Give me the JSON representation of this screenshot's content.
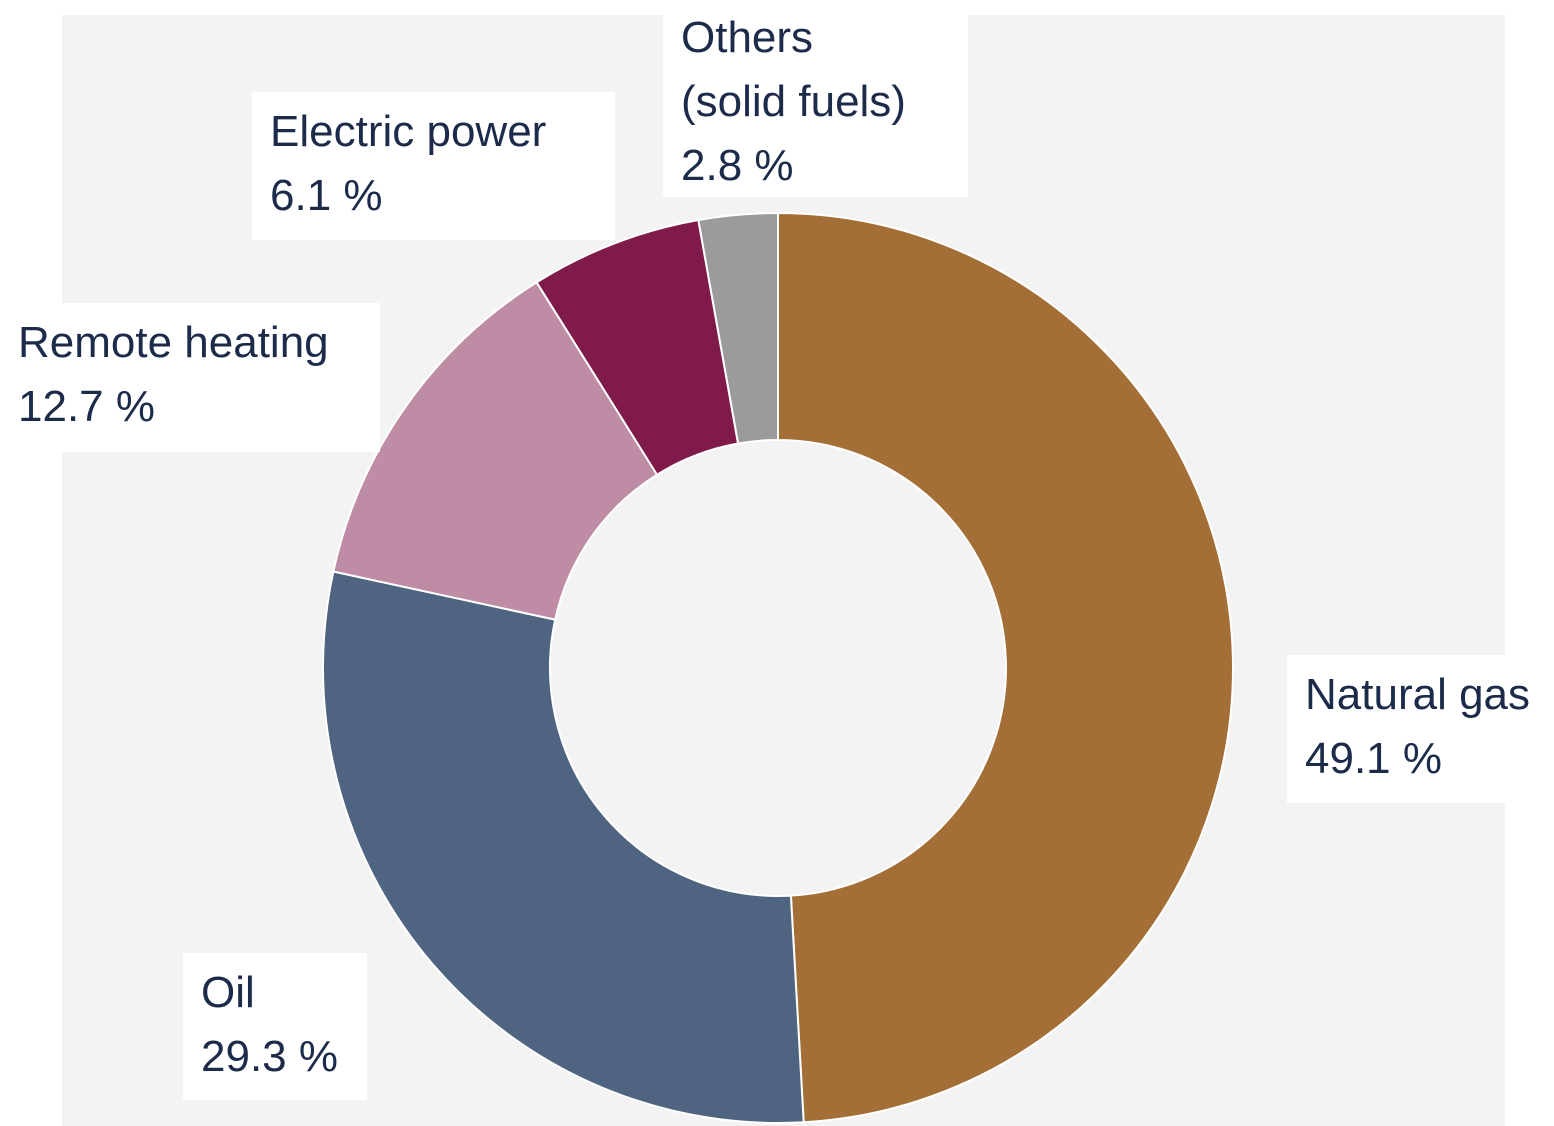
{
  "chart_data": {
    "type": "pie",
    "donut": true,
    "categories": [
      "Natural gas",
      "Oil",
      "Remote heating",
      "Electric power",
      "Others\n(solid fuels)"
    ],
    "values": [
      49.1,
      29.3,
      12.7,
      6.1,
      2.8
    ],
    "value_labels": [
      "49.1 %",
      "29.3 %",
      "12.7 %",
      "6.1 %",
      "2.8 %"
    ],
    "colors": [
      "#a36f37",
      "#4e6480",
      "#bf8ca5",
      "#7f1a4a",
      "#9b9b9b"
    ]
  }
}
